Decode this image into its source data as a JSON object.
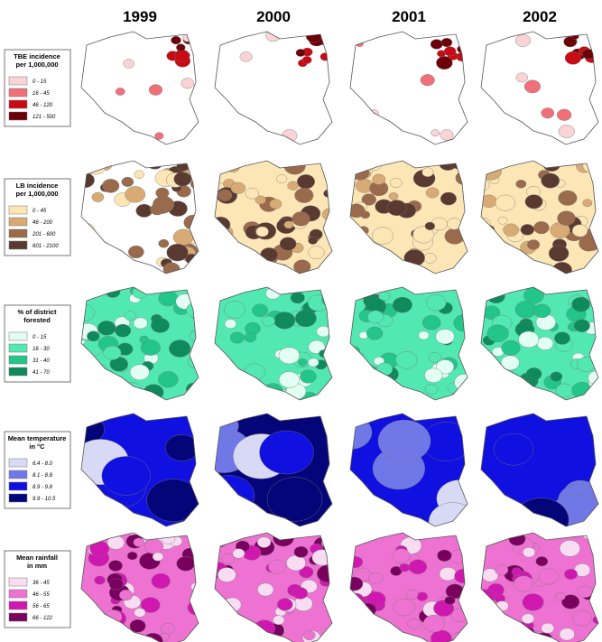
{
  "years": [
    "1999",
    "2000",
    "2001",
    "2002"
  ],
  "legends": [
    {
      "title": [
        "TBE incidence",
        "per 1,000,000"
      ],
      "items": [
        {
          "label": "0 - 15",
          "color": "#f9d3d5"
        },
        {
          "label": "16 - 45",
          "color": "#f0707a"
        },
        {
          "label": "46 - 120",
          "color": "#c80a14"
        },
        {
          "label": "121 - 500",
          "color": "#6b0008"
        }
      ]
    },
    {
      "title": [
        "LB incidence",
        "per 1,000,000"
      ],
      "items": [
        {
          "label": "0 - 45",
          "color": "#fde6b5"
        },
        {
          "label": "46 - 200",
          "color": "#d9ab74"
        },
        {
          "label": "201 - 600",
          "color": "#9a6a4c"
        },
        {
          "label": "601 - 2100",
          "color": "#5a3a30"
        }
      ]
    },
    {
      "title": [
        "% of district",
        "forested"
      ],
      "items": [
        {
          "label": "0 - 15",
          "color": "#e2fff4"
        },
        {
          "label": "16 - 30",
          "color": "#52e8b4"
        },
        {
          "label": "31 - 40",
          "color": "#22c58a"
        },
        {
          "label": "41 - 70",
          "color": "#0f8a5c"
        }
      ]
    },
    {
      "title": [
        "Mean temperature",
        "in °C"
      ],
      "items": [
        {
          "label": "6.4 - 8.0",
          "color": "#d8daf5"
        },
        {
          "label": "8.1 - 8.8",
          "color": "#7078e8"
        },
        {
          "label": "8.9 - 9.8",
          "color": "#1010e0"
        },
        {
          "label": "9.9 - 10.5",
          "color": "#05057a"
        }
      ]
    },
    {
      "title": [
        "Mean rainfall",
        "in mm"
      ],
      "items": [
        {
          "label": "36 - 45",
          "color": "#f8dcf2"
        },
        {
          "label": "46 - 55",
          "color": "#ee72d2"
        },
        {
          "label": "56 - 65",
          "color": "#d018b0"
        },
        {
          "label": "66 - 122",
          "color": "#7a0060"
        }
      ]
    }
  ]
}
